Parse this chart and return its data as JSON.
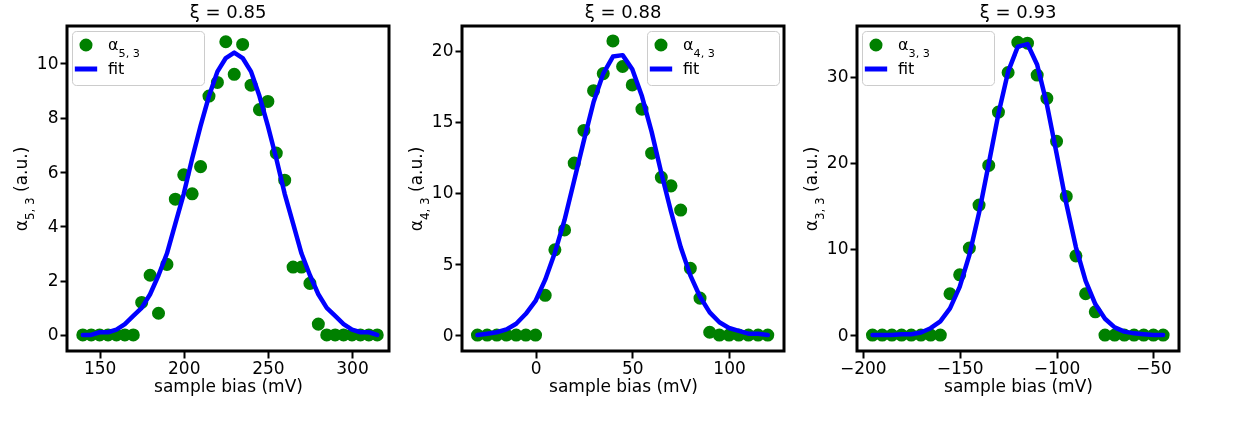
{
  "chart_data": [
    {
      "type": "scatter",
      "title": "ξ = 0.85",
      "xlabel": "sample bias (mV)",
      "ylabel": "α$_{5, 3}$ (a.u.)",
      "legend": "top left",
      "grid": false,
      "x": [
        140,
        145,
        150,
        155,
        160,
        165,
        170,
        175,
        180,
        185,
        190,
        195,
        200,
        205,
        210,
        215,
        220,
        225,
        230,
        235,
        240,
        245,
        250,
        255,
        260,
        265,
        270,
        275,
        280,
        285,
        290,
        295,
        300,
        305,
        310,
        315
      ],
      "xlim": [
        130.6,
        322
      ],
      "xticks": [
        150,
        200,
        250,
        300
      ],
      "ylim": [
        -0.59,
        11.38
      ],
      "yticks": [
        0,
        2,
        4,
        6,
        8,
        10
      ],
      "series": [
        {
          "name": "α$_{5, 3}$",
          "type": "scatter",
          "marker": "circle",
          "color": "#008000",
          "values": [
            0,
            0,
            0,
            0,
            0,
            0,
            0,
            1.2,
            2.2,
            0.8,
            2.6,
            5.0,
            5.9,
            5.2,
            6.2,
            8.8,
            9.3,
            10.8,
            9.6,
            10.7,
            9.2,
            8.3,
            8.6,
            6.7,
            5.7,
            2.5,
            2.5,
            1.9,
            0.4,
            0,
            0,
            0,
            0,
            0,
            0,
            0
          ]
        },
        {
          "name": "fit",
          "type": "line",
          "marker": "none",
          "color": "#0000ff",
          "line_style": "solid",
          "values": [
            0,
            0,
            0.1,
            0.1,
            0.2,
            0.4,
            0.7,
            1.0,
            1.5,
            2.2,
            3.0,
            4.1,
            5.2,
            6.5,
            7.7,
            8.8,
            9.7,
            10.2,
            10.4,
            10.2,
            9.7,
            8.8,
            7.7,
            6.5,
            5.2,
            4.1,
            3.0,
            2.2,
            1.5,
            1.0,
            0.7,
            0.4,
            0.2,
            0.1,
            0.1,
            0
          ]
        }
      ]
    },
    {
      "type": "scatter",
      "title": "ξ = 0.88",
      "xlabel": "sample bias (mV)",
      "ylabel": "α$_{4, 3}$ (a.u.)",
      "legend": "top right",
      "grid": false,
      "x": [
        -30,
        -25,
        -20,
        -15,
        -10,
        -5,
        0,
        5,
        10,
        15,
        20,
        25,
        30,
        35,
        40,
        45,
        50,
        55,
        60,
        65,
        70,
        75,
        80,
        85,
        90,
        95,
        100,
        105,
        110,
        115,
        120
      ],
      "xlim": [
        -38,
        128.4
      ],
      "xticks": [
        0,
        50,
        100
      ],
      "ylim": [
        -1.12,
        21.75
      ],
      "yticks": [
        0,
        5,
        10,
        15,
        20
      ],
      "series": [
        {
          "name": "α$_{4, 3}$",
          "type": "scatter",
          "marker": "circle",
          "color": "#008000",
          "values": [
            0,
            0,
            0,
            0,
            0,
            0,
            0,
            2.8,
            6.0,
            7.4,
            12.1,
            14.4,
            17.2,
            18.4,
            20.7,
            18.9,
            17.6,
            15.9,
            12.8,
            11.1,
            10.5,
            8.8,
            4.7,
            2.6,
            0.2,
            0,
            0,
            0,
            0,
            0,
            0
          ]
        },
        {
          "name": "fit",
          "type": "line",
          "marker": "none",
          "color": "#0000ff",
          "line_style": "solid",
          "values": [
            0,
            0.1,
            0.2,
            0.4,
            0.8,
            1.5,
            2.4,
            3.9,
            5.8,
            8.1,
            10.9,
            13.7,
            16.4,
            18.4,
            19.6,
            19.7,
            18.7,
            16.8,
            14.3,
            11.4,
            8.7,
            6.2,
            4.2,
            2.7,
            1.6,
            0.9,
            0.5,
            0.3,
            0.1,
            0.1,
            0
          ]
        }
      ]
    },
    {
      "type": "scatter",
      "title": "ξ = 0.93",
      "xlabel": "sample bias (mV)",
      "ylabel": "α$_{3, 3}$ (a.u.)",
      "legend": "top left",
      "grid": false,
      "x": [
        -195,
        -190,
        -185,
        -180,
        -175,
        -170,
        -165,
        -160,
        -155,
        -150,
        -145,
        -140,
        -135,
        -130,
        -125,
        -120,
        -115,
        -110,
        -105,
        -100,
        -95,
        -90,
        -85,
        -80,
        -75,
        -70,
        -65,
        -60,
        -55,
        -50,
        -45
      ],
      "xlim": [
        -203,
        -36.8
      ],
      "xticks": [
        -200,
        -150,
        -100,
        -50
      ],
      "ylim": [
        -1.85,
        35.9
      ],
      "yticks": [
        0,
        10,
        20,
        30
      ],
      "series": [
        {
          "name": "α$_{3, 3}$",
          "type": "scatter",
          "marker": "circle",
          "color": "#008000",
          "values": [
            0,
            0,
            0,
            0,
            0,
            0,
            0,
            0,
            4.8,
            7.0,
            10.1,
            15.1,
            19.7,
            25.9,
            30.5,
            34.0,
            33.9,
            30.2,
            27.5,
            22.5,
            16.1,
            9.2,
            4.8,
            2.7,
            0,
            0,
            0,
            0,
            0,
            0,
            0
          ]
        },
        {
          "name": "fit",
          "type": "line",
          "marker": "none",
          "color": "#0000ff",
          "line_style": "solid",
          "values": [
            0,
            0,
            0,
            0.1,
            0.1,
            0.3,
            0.8,
            1.6,
            3.1,
            5.6,
            9.3,
            14.2,
            19.9,
            25.7,
            30.6,
            33.5,
            33.8,
            31.4,
            26.8,
            21.1,
            15.3,
            10.2,
            6.3,
            3.6,
            1.9,
            0.9,
            0.4,
            0.2,
            0.1,
            0,
            0
          ]
        }
      ]
    }
  ]
}
